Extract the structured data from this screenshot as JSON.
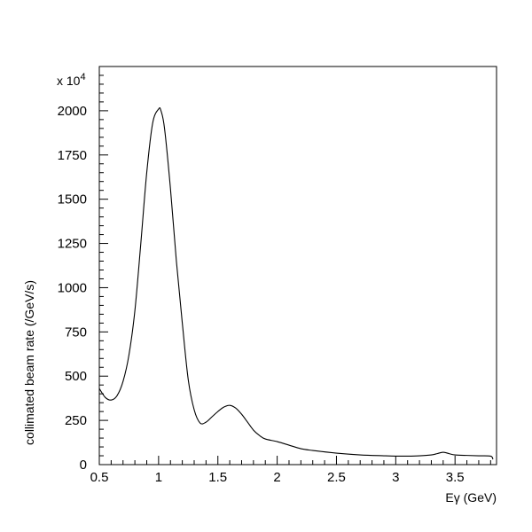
{
  "chart_data": {
    "type": "line",
    "xlabel": "Eγ (GeV)",
    "ylabel": "collimated beam rate (/GeV/s)",
    "y_multiplier": "x 10",
    "y_multiplier_exponent": "4",
    "xlim": [
      0.5,
      3.85
    ],
    "ylim": [
      0,
      2250
    ],
    "x_ticks": [
      0.5,
      1,
      1.5,
      2,
      2.5,
      3,
      3.5
    ],
    "x_tick_labels": [
      "0.5",
      "1",
      "1.5",
      "2",
      "2.5",
      "3",
      "3.5"
    ],
    "y_ticks": [
      0,
      250,
      500,
      750,
      1000,
      1250,
      1500,
      1750,
      2000
    ],
    "y_tick_labels": [
      "0",
      "250",
      "500",
      "750",
      "1000",
      "1250",
      "1500",
      "1750",
      "2000"
    ],
    "grid": false,
    "series": [
      {
        "color": "#000000",
        "x": [
          0.5,
          0.55,
          0.6,
          0.65,
          0.7,
          0.75,
          0.8,
          0.85,
          0.9,
          0.95,
          1.0,
          1.02,
          1.05,
          1.1,
          1.15,
          1.2,
          1.25,
          1.3,
          1.35,
          1.4,
          1.45,
          1.5,
          1.55,
          1.6,
          1.65,
          1.7,
          1.75,
          1.8,
          1.85,
          1.9,
          2.0,
          2.1,
          2.2,
          2.3,
          2.5,
          2.7,
          2.9,
          3.0,
          3.1,
          3.2,
          3.3,
          3.35,
          3.4,
          3.45,
          3.5,
          3.6,
          3.7,
          3.8,
          3.82
        ],
        "y": [
          430,
          380,
          365,
          390,
          470,
          620,
          870,
          1250,
          1650,
          1930,
          2010,
          2000,
          1900,
          1560,
          1150,
          800,
          480,
          310,
          235,
          240,
          270,
          300,
          325,
          335,
          320,
          285,
          240,
          195,
          165,
          145,
          130,
          110,
          90,
          80,
          65,
          55,
          50,
          48,
          48,
          50,
          55,
          62,
          70,
          62,
          55,
          52,
          50,
          48,
          30
        ]
      }
    ]
  }
}
